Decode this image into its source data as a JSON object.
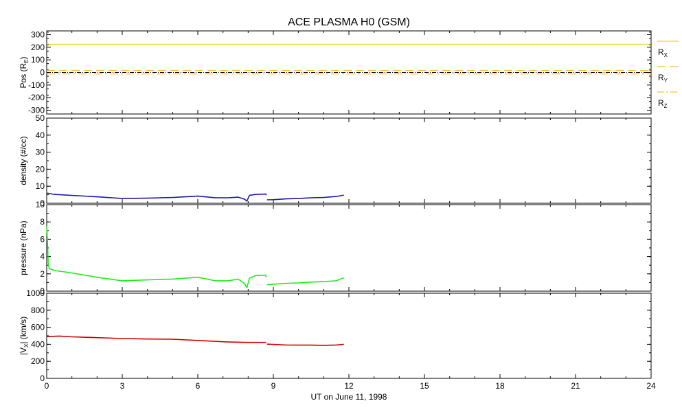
{
  "colors": {
    "rx": "#e6c800",
    "ry": "#ffaa00",
    "rz": "#ffaa00",
    "density": "#1a1aa8",
    "pressure": "#1aee1a",
    "vx": "#cc0000",
    "axis": "#000000"
  },
  "chart_data": {
    "type": "line",
    "title": "ACE PLASMA H0 (GSM)",
    "xlabel": "UT on June 11, 1998",
    "xlim": [
      0,
      24
    ],
    "xticks": [
      "0",
      "3",
      "6",
      "9",
      "12",
      "15",
      "18",
      "21",
      "24"
    ],
    "panels": [
      {
        "id": "pos",
        "ylabel": {
          "main": "Pos (R",
          "sub": "E",
          "tail": ")"
        },
        "ylim": [
          -330,
          330
        ],
        "yticks": [
          "300",
          "200",
          "100",
          "0",
          "-100",
          "-200",
          "-300"
        ],
        "series": [
          {
            "name": "R",
            "sub": "X",
            "style": "solid",
            "x": [
              0,
              24
            ],
            "y": [
              224,
              224
            ]
          },
          {
            "name": "R",
            "sub": "Y",
            "style": "dashed",
            "x": [
              0,
              24
            ],
            "y": [
              17,
              17
            ]
          },
          {
            "name": "R",
            "sub": "Z",
            "style": "dashdot",
            "x": [
              0,
              24
            ],
            "y": [
              -12,
              -12
            ]
          }
        ],
        "zero_line": true
      },
      {
        "id": "density",
        "ylabel": {
          "main": "density (#/cc)",
          "sub": "",
          "tail": ""
        },
        "ylim": [
          0,
          50
        ],
        "yticks": [
          "50",
          "40",
          "30",
          "20",
          "10",
          "0"
        ],
        "series": [
          {
            "x": [
              0,
              0.3,
              1,
              2,
              3,
              4,
              5,
              6,
              6.7,
              7.2,
              7.6,
              7.85,
              7.95,
              8.05,
              8.3,
              8.7,
              8.72
            ],
            "y": [
              6,
              5.2,
              4.6,
              3.8,
              2.8,
              3,
              3.4,
              4.2,
              3.2,
              3.2,
              3.6,
              2.4,
              1.3,
              4.6,
              5.2,
              5.4,
              4.8
            ]
          },
          {
            "x": [
              8.75,
              9,
              9.5,
              10,
              10.5,
              11,
              11.5,
              11.8
            ],
            "y": [
              2,
              2.1,
              2.6,
              2.8,
              3.2,
              3.4,
              4,
              4.8
            ]
          }
        ]
      },
      {
        "id": "pressure",
        "ylabel": {
          "main": "pressure (nPa)",
          "sub": "",
          "tail": ""
        },
        "ylim": [
          0,
          10
        ],
        "yticks": [
          "10",
          "8",
          "6",
          "4",
          "2",
          "0"
        ],
        "series": [
          {
            "x": [
              0,
              0.03,
              0.06,
              0.1,
              0.3,
              1,
              2,
              3,
              4,
              5,
              6,
              6.7,
              7.2,
              7.6,
              7.85,
              7.95,
              8.05,
              8.3,
              8.7,
              8.72
            ],
            "y": [
              7.5,
              5.8,
              3.2,
              2.6,
              2.4,
              2.1,
              1.6,
              1.2,
              1.3,
              1.4,
              1.6,
              1.2,
              1.2,
              1.4,
              0.9,
              0.4,
              1.5,
              1.8,
              1.85,
              1.6
            ]
          },
          {
            "x": [
              8.75,
              9,
              9.5,
              10,
              10.5,
              11,
              11.5,
              11.8
            ],
            "y": [
              0.75,
              0.8,
              0.9,
              0.95,
              1.05,
              1.1,
              1.2,
              1.55
            ]
          }
        ]
      },
      {
        "id": "vx",
        "ylabel": {
          "main": "|V",
          "sub": "X",
          "tail": "| (km/s)"
        },
        "ylim": [
          0,
          1000
        ],
        "yticks": [
          "1000",
          "800",
          "600",
          "400",
          "200",
          "0"
        ],
        "series": [
          {
            "x": [
              0,
              0.5,
              1,
              2,
              3,
              4,
              5,
              6,
              7,
              7.5,
              8,
              8.7,
              8.72
            ],
            "y": [
              490,
              497,
              488,
              478,
              468,
              462,
              460,
              445,
              430,
              425,
              422,
              422,
              420
            ]
          },
          {
            "x": [
              8.75,
              9,
              9.5,
              10,
              10.5,
              11,
              11.5,
              11.8
            ],
            "y": [
              402,
              398,
              392,
              390,
              390,
              388,
              392,
              400
            ]
          }
        ]
      }
    ]
  }
}
